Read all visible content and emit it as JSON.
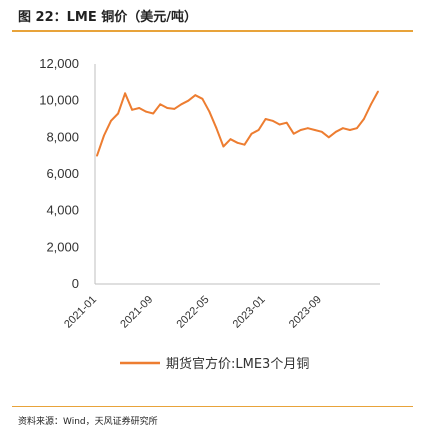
{
  "header": {
    "title": "图 22：LME 铜价（美元/吨）"
  },
  "footer": {
    "source": "资料来源：Wind，天风证券研究所"
  },
  "colors": {
    "series": "#ed7d31",
    "axis": "#bfbfbf",
    "rule": "#e8a33a"
  },
  "chart_data": {
    "type": "line",
    "title": "",
    "xlabel": "",
    "ylabel": "",
    "ylim": [
      0,
      12000
    ],
    "yticks": [
      0,
      2000,
      4000,
      6000,
      8000,
      10000,
      12000
    ],
    "ytick_labels": [
      "0",
      "2,000",
      "4,000",
      "6,000",
      "8,000",
      "10,000",
      "12,000"
    ],
    "xlim": [
      "2021-01",
      "2024-05"
    ],
    "xtick_labels": [
      "2021-01",
      "2021-09",
      "2022-05",
      "2023-01",
      "2023-09"
    ],
    "legend": "bottom",
    "grid": false,
    "series": [
      {
        "name": "期货官方价:LME3个月铜",
        "x": [
          "2021-01",
          "2021-02",
          "2021-03",
          "2021-04",
          "2021-05",
          "2021-06",
          "2021-07",
          "2021-08",
          "2021-09",
          "2021-10",
          "2021-11",
          "2021-12",
          "2022-01",
          "2022-02",
          "2022-03",
          "2022-04",
          "2022-05",
          "2022-06",
          "2022-07",
          "2022-08",
          "2022-09",
          "2022-10",
          "2022-11",
          "2022-12",
          "2023-01",
          "2023-02",
          "2023-03",
          "2023-04",
          "2023-05",
          "2023-06",
          "2023-07",
          "2023-08",
          "2023-09",
          "2023-10",
          "2023-11",
          "2023-12",
          "2024-01",
          "2024-02",
          "2024-03",
          "2024-04",
          "2024-05"
        ],
        "values": [
          7000,
          8100,
          8900,
          9300,
          10400,
          9500,
          9600,
          9400,
          9300,
          9800,
          9600,
          9550,
          9800,
          10000,
          10300,
          10100,
          9400,
          8500,
          7500,
          7900,
          7700,
          7600,
          8200,
          8400,
          9000,
          8900,
          8700,
          8800,
          8200,
          8400,
          8500,
          8400,
          8300,
          8000,
          8300,
          8500,
          8400,
          8500,
          9000,
          9800,
          10500
        ]
      }
    ]
  }
}
